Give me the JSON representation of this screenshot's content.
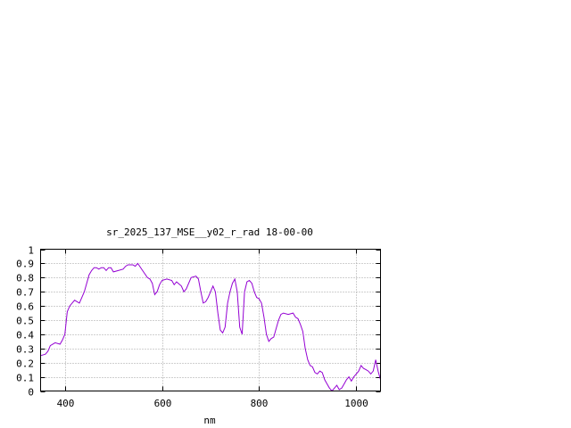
{
  "chart_data": {
    "type": "line",
    "title": "sr_2025_137_MSE__y02_r_rad 18-00-00",
    "xlabel": "nm",
    "ylabel": "",
    "xlim": [
      350,
      1050
    ],
    "ylim": [
      0,
      1
    ],
    "grid": true,
    "x_ticks": [
      400,
      600,
      800,
      1000
    ],
    "y_ticks": [
      0,
      0.1,
      0.2,
      0.3,
      0.4,
      0.5,
      0.6,
      0.7,
      0.8,
      0.9,
      1
    ],
    "y_tick_labels": [
      "0",
      "0.1",
      "0.2",
      "0.3",
      "0.4",
      "0.5",
      "0.6",
      "0.7",
      "0.8",
      "0.9",
      "1"
    ],
    "series": [
      {
        "name": "",
        "color": "#9400d3",
        "x": [
          350,
          360,
          365,
          370,
          380,
          390,
          395,
          400,
          405,
          410,
          420,
          425,
          430,
          440,
          450,
          455,
          460,
          465,
          470,
          475,
          480,
          485,
          490,
          495,
          500,
          510,
          520,
          525,
          530,
          540,
          545,
          550,
          560,
          570,
          575,
          580,
          585,
          590,
          595,
          600,
          610,
          620,
          625,
          630,
          640,
          645,
          650,
          660,
          670,
          675,
          680,
          685,
          690,
          695,
          700,
          705,
          710,
          715,
          720,
          725,
          730,
          735,
          740,
          745,
          750,
          755,
          760,
          765,
          770,
          775,
          780,
          785,
          790,
          795,
          800,
          805,
          810,
          815,
          820,
          825,
          830,
          835,
          840,
          845,
          850,
          860,
          870,
          875,
          880,
          885,
          890,
          895,
          900,
          905,
          910,
          915,
          920,
          925,
          930,
          935,
          940,
          945,
          950,
          955,
          960,
          965,
          970,
          975,
          980,
          985,
          990,
          995,
          1000,
          1005,
          1010,
          1015,
          1020,
          1025,
          1030,
          1035,
          1040,
          1045,
          1050
        ],
        "values": [
          0.25,
          0.26,
          0.28,
          0.32,
          0.34,
          0.33,
          0.36,
          0.4,
          0.56,
          0.6,
          0.64,
          0.63,
          0.62,
          0.7,
          0.82,
          0.85,
          0.87,
          0.87,
          0.86,
          0.87,
          0.87,
          0.85,
          0.87,
          0.87,
          0.84,
          0.85,
          0.86,
          0.88,
          0.89,
          0.89,
          0.88,
          0.9,
          0.85,
          0.8,
          0.79,
          0.76,
          0.68,
          0.7,
          0.75,
          0.78,
          0.79,
          0.78,
          0.75,
          0.77,
          0.74,
          0.7,
          0.72,
          0.8,
          0.81,
          0.79,
          0.7,
          0.62,
          0.63,
          0.66,
          0.7,
          0.74,
          0.7,
          0.55,
          0.43,
          0.41,
          0.45,
          0.62,
          0.7,
          0.76,
          0.79,
          0.7,
          0.45,
          0.4,
          0.7,
          0.77,
          0.78,
          0.76,
          0.7,
          0.66,
          0.65,
          0.62,
          0.52,
          0.4,
          0.35,
          0.37,
          0.38,
          0.44,
          0.5,
          0.54,
          0.55,
          0.54,
          0.55,
          0.52,
          0.51,
          0.47,
          0.42,
          0.3,
          0.22,
          0.18,
          0.17,
          0.13,
          0.12,
          0.14,
          0.13,
          0.08,
          0.05,
          0.02,
          0.0,
          0.02,
          0.04,
          0.01,
          0.02,
          0.05,
          0.08,
          0.1,
          0.07,
          0.1,
          0.12,
          0.14,
          0.18,
          0.16,
          0.15,
          0.14,
          0.12,
          0.14,
          0.22,
          0.14,
          0.08
        ]
      }
    ]
  }
}
